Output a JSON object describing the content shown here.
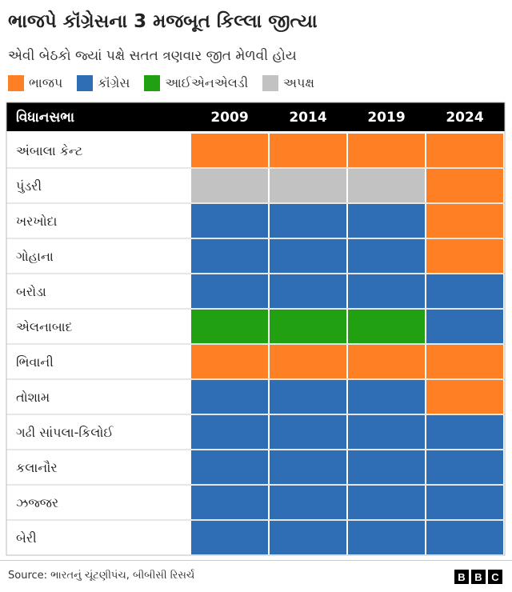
{
  "title": "ભાજપે કૉંગ્રેસના 3 મજબૂત કિલ્લા જીત્યા",
  "subtitle": "એવી બેઠકો જ્યાં પક્ષે સતત ત્રણવાર જીત મેળવી હોય",
  "legend": [
    {
      "label": "ભાજપ",
      "color": "#ff7f24"
    },
    {
      "label": "કૉંગ્રેસ",
      "color": "#2f6db5"
    },
    {
      "label": "આઈએનએલડી",
      "color": "#21a011"
    },
    {
      "label": "અપક્ષ",
      "color": "#c2c2c2"
    }
  ],
  "source": "Source: ભારતનું ચૂંટણીપંચ, બીબીસી રિસર્ચ",
  "logo_letters": [
    "B",
    "B",
    "C"
  ],
  "chart_data": {
    "type": "table",
    "header_label": "વિધાનસભા",
    "years": [
      "2009",
      "2014",
      "2019",
      "2024"
    ],
    "party_colors": {
      "bjp": "#ff7f24",
      "congress": "#2f6db5",
      "inld": "#21a011",
      "independent": "#c2c2c2"
    },
    "rows": [
      {
        "name": "અંબાલા કેન્ટ",
        "winners": [
          "bjp",
          "bjp",
          "bjp",
          "bjp"
        ]
      },
      {
        "name": "પુંડરી",
        "winners": [
          "independent",
          "independent",
          "independent",
          "bjp"
        ]
      },
      {
        "name": "ખરખોદા",
        "winners": [
          "congress",
          "congress",
          "congress",
          "bjp"
        ]
      },
      {
        "name": "ગોહાના",
        "winners": [
          "congress",
          "congress",
          "congress",
          "bjp"
        ]
      },
      {
        "name": "બરોડા",
        "winners": [
          "congress",
          "congress",
          "congress",
          "congress"
        ]
      },
      {
        "name": "એલનાબાદ",
        "winners": [
          "inld",
          "inld",
          "inld",
          "congress"
        ]
      },
      {
        "name": "ભિવાની",
        "winners": [
          "bjp",
          "bjp",
          "bjp",
          "bjp"
        ]
      },
      {
        "name": "તોશામ",
        "winners": [
          "congress",
          "congress",
          "congress",
          "bjp"
        ]
      },
      {
        "name": "ગઢી સાંપલા-કિલોઈ",
        "winners": [
          "congress",
          "congress",
          "congress",
          "congress"
        ]
      },
      {
        "name": "કલાનૌર",
        "winners": [
          "congress",
          "congress",
          "congress",
          "congress"
        ]
      },
      {
        "name": "ઝજ્જર",
        "winners": [
          "congress",
          "congress",
          "congress",
          "congress"
        ]
      },
      {
        "name": "બેરી",
        "winners": [
          "congress",
          "congress",
          "congress",
          "congress"
        ]
      }
    ]
  }
}
